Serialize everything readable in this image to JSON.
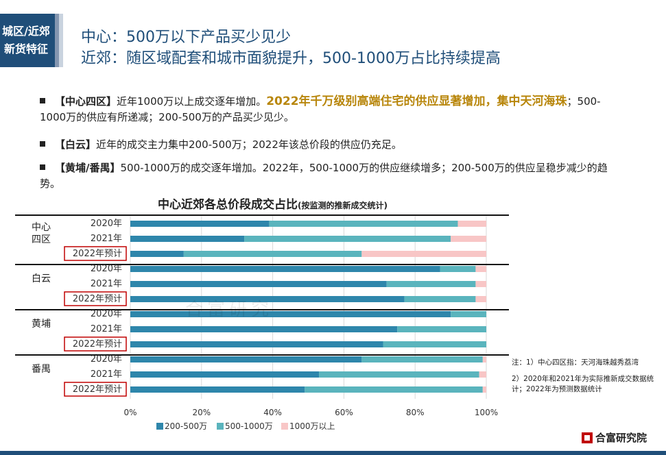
{
  "header": {
    "tag_line1": "城区/近郊",
    "tag_line2": "新货特征",
    "headline1": "中心：500万以下产品买少见少",
    "headline2": "近郊：随区域配套和城市面貌提升，500-1000万占比持续提高"
  },
  "bullets": [
    {
      "key": "【中心四区】",
      "text": "近年1000万以上成交逐年增加。",
      "highlight": "2022年千万级别高端住宅的供应显著增加，集中天河海珠",
      "rest": "；500-1000万的供应有所递减；200-500万的产品买少见少。"
    },
    {
      "key": "【白云】",
      "text": "近年的成交主力集中200-500万；2022年该总价段的供应仍充足。"
    },
    {
      "key": "【黄埔/番禺】",
      "text": "500-1000万的成交逐年增加。2022年，500-1000万的供应继续增多；200-500万的供应呈稳步减少的趋势。"
    }
  ],
  "chart_title": "中心近郊各总价段成交占比",
  "chart_subtitle": "(按监测的推新成交统计)",
  "watermark": "合富研究",
  "chart_data": {
    "type": "bar",
    "orientation": "horizontal-stacked-100",
    "groups": [
      {
        "name": "中心\n四区",
        "rows": [
          {
            "label": "2020年",
            "values": [
              39,
              53,
              8
            ]
          },
          {
            "label": "2021年",
            "values": [
              32,
              58,
              10
            ]
          },
          {
            "label": "2022年预计",
            "values": [
              15,
              50,
              35
            ],
            "boxed": true
          }
        ]
      },
      {
        "name": "白云",
        "rows": [
          {
            "label": "2020年",
            "values": [
              87,
              10,
              3
            ]
          },
          {
            "label": "2021年",
            "values": [
              72,
              25,
              3
            ]
          },
          {
            "label": "2022年预计",
            "values": [
              77,
              20,
              3
            ],
            "boxed": true
          }
        ]
      },
      {
        "name": "黄埔",
        "rows": [
          {
            "label": "2020年",
            "values": [
              90,
              10,
              0
            ]
          },
          {
            "label": "2021年",
            "values": [
              75,
              25,
              0
            ]
          },
          {
            "label": "2022年预计",
            "values": [
              71,
              29,
              0
            ],
            "boxed": true
          }
        ]
      },
      {
        "name": "番禺",
        "rows": [
          {
            "label": "2020年",
            "values": [
              65,
              34,
              1
            ]
          },
          {
            "label": "2021年",
            "values": [
              53,
              45,
              2
            ]
          },
          {
            "label": "2022年预计",
            "values": [
              49,
              50,
              1
            ],
            "boxed": true
          }
        ]
      }
    ],
    "series": [
      {
        "name": "200-500万",
        "color": "#2e86ab"
      },
      {
        "name": "500-1000万",
        "color": "#5ab4bd"
      },
      {
        "name": "1000万以上",
        "color": "#f8c6c6"
      }
    ],
    "xlim": [
      0,
      100
    ],
    "xticks": [
      "0%",
      "20%",
      "40%",
      "60%",
      "80%",
      "100%"
    ],
    "legend": "bottom"
  },
  "notes": [
    "注：1）中心四区指：天河海珠越秀荔湾",
    "2）2020年和2021年为实际推新成交数据统计；2022年为预测数据统计"
  ],
  "logo_text": "合富研究院"
}
